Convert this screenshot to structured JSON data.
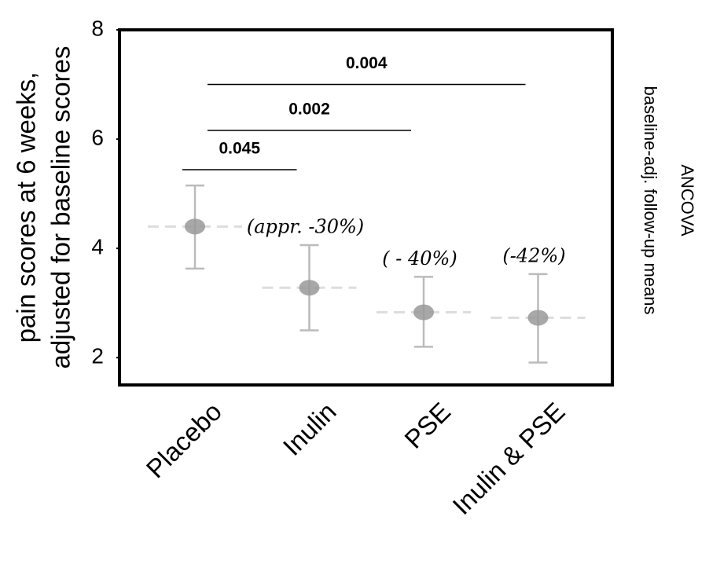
{
  "chart_data": {
    "type": "errorbar",
    "ylabel": [
      "pain scores at 6 weeks,",
      "adjusted for baseline scores"
    ],
    "right_label": [
      "ANCOVA",
      "baseline-adj. follow-up means"
    ],
    "categories": [
      "Placebo",
      "Inulin",
      "PSE",
      "Inulin & PSE"
    ],
    "values": [
      4.4,
      3.28,
      2.83,
      2.73
    ],
    "lower": [
      3.63,
      2.5,
      2.2,
      1.91
    ],
    "upper": [
      5.15,
      4.06,
      3.48,
      3.53
    ],
    "percent_labels": [
      null,
      "(appr. -30%)",
      "( - 40%)",
      "(-42%)"
    ],
    "color": "#999999",
    "ylim": [
      1.5,
      8
    ],
    "yticks": [
      2,
      4,
      6,
      8
    ],
    "comparisons": [
      {
        "label": "0.045",
        "between": [
          "Placebo",
          "Inulin"
        ],
        "y": 5.44
      },
      {
        "label": "0.002",
        "between": [
          "Placebo",
          "PSE"
        ],
        "y": 6.16
      },
      {
        "label": "0.004",
        "between": [
          "Placebo",
          "Inulin & PSE"
        ],
        "y": 7.0
      }
    ]
  }
}
